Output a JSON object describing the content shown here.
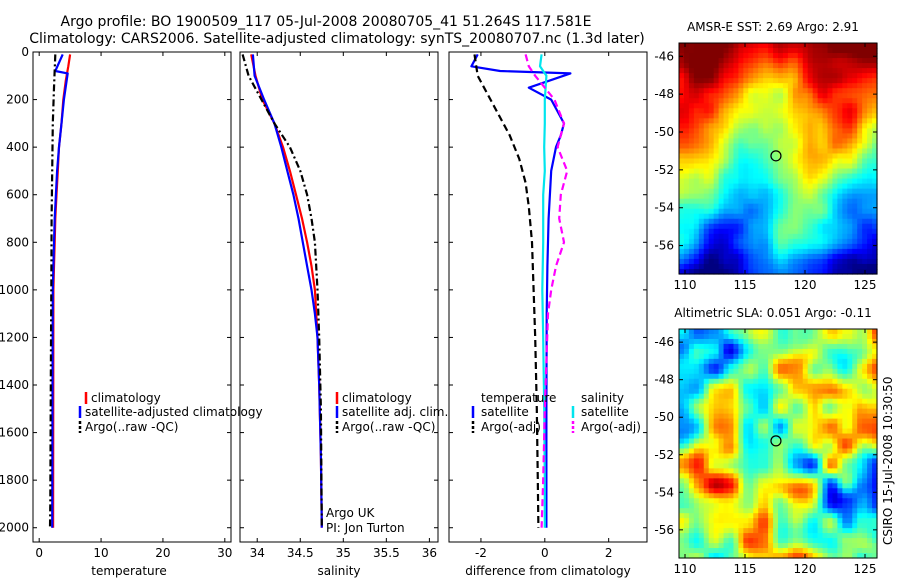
{
  "figure": {
    "title_line1": "Argo profile: BO 1900509_117 05-Jul-2008 20080705_41 51.264S 117.581E",
    "title_line2": "Climatology: CARS2006. Satellite-adjusted climatology: synTS_20080707.nc (1.3d later)",
    "side_label": "CSIRO 15-Jul-2008 10:30:50"
  },
  "chart_data": [
    {
      "type": "line",
      "name": "temperature",
      "xlabel": "temperature",
      "ylabel": "",
      "xlim": [
        -1,
        31
      ],
      "ylim": [
        2060,
        0
      ],
      "xticks": [
        "0",
        "10",
        "20",
        "30"
      ],
      "xtick_values": [
        0,
        10,
        20,
        30
      ],
      "yticks": [
        "0",
        "200",
        "400",
        "600",
        "800",
        "1000",
        "1200",
        "1400",
        "1600",
        "1800",
        "2000"
      ],
      "ytick_values": [
        0,
        200,
        400,
        600,
        800,
        1000,
        1200,
        1400,
        1600,
        1800,
        2000
      ],
      "legend": [
        "climatology",
        "satellite-adjusted climatology",
        "Argo(..raw -QC)"
      ],
      "series": [
        {
          "name": "climatology",
          "color": "#ff0000",
          "style": "solid",
          "x": [
            5.0,
            4.7,
            4.3,
            3.9,
            3.6,
            3.2,
            3.0,
            2.8,
            2.6,
            2.5,
            2.4,
            2.3,
            2.25
          ],
          "y": [
            10,
            60,
            120,
            200,
            300,
            400,
            500,
            600,
            700,
            800,
            900,
            1000,
            2000
          ]
        },
        {
          "name": "satellite-adjusted climatology",
          "color": "#0000ff",
          "style": "solid",
          "x": [
            3.8,
            2.6,
            4.6,
            4.0,
            3.6,
            3.2,
            2.9,
            2.7,
            2.5,
            2.4,
            2.3,
            2.2,
            2.15,
            2.1
          ],
          "y": [
            10,
            80,
            90,
            200,
            300,
            400,
            500,
            600,
            700,
            800,
            900,
            1000,
            1400,
            2000
          ]
        },
        {
          "name": "Argo(..raw -QC)",
          "color": "#000000",
          "style": "dashdot",
          "x": [
            2.6,
            2.4,
            2.2,
            2.1,
            2.0,
            1.95,
            1.9,
            1.85,
            1.8,
            1.75
          ],
          "y": [
            10,
            150,
            300,
            500,
            700,
            1000,
            1300,
            1600,
            1900,
            2000
          ]
        }
      ]
    },
    {
      "type": "line",
      "name": "salinity",
      "xlabel": "salinity",
      "ylabel": "",
      "xlim": [
        33.8,
        36.1
      ],
      "ylim": [
        2060,
        0
      ],
      "xticks": [
        "34",
        "34.5",
        "35",
        "35.5",
        "36"
      ],
      "xtick_values": [
        34,
        34.5,
        35,
        35.5,
        36
      ],
      "legend": [
        "climatology",
        "satellite adj. clim.",
        "Argo(..raw -QC)"
      ],
      "annotations": [
        "Argo UK",
        "PI: Jon Turton"
      ],
      "series": [
        {
          "name": "climatology",
          "color": "#ff0000",
          "style": "solid",
          "x": [
            33.93,
            33.98,
            34.06,
            34.2,
            34.3,
            34.38,
            34.45,
            34.52,
            34.58,
            34.63,
            34.67,
            34.7,
            34.72,
            34.74,
            34.75
          ],
          "y": [
            10,
            100,
            200,
            300,
            400,
            500,
            600,
            700,
            800,
            900,
            1000,
            1200,
            1400,
            1700,
            2000
          ]
        },
        {
          "name": "satellite adj. clim.",
          "color": "#0000ff",
          "style": "solid",
          "x": [
            33.95,
            33.97,
            34.08,
            34.2,
            34.28,
            34.35,
            34.42,
            34.48,
            34.53,
            34.58,
            34.63,
            34.67,
            34.7,
            34.72,
            34.74,
            34.75
          ],
          "y": [
            10,
            100,
            200,
            300,
            400,
            500,
            600,
            700,
            800,
            900,
            1000,
            1100,
            1200,
            1400,
            1700,
            2000
          ]
        },
        {
          "name": "Argo(..raw -QC)",
          "color": "#000000",
          "style": "dashdot",
          "x": [
            33.83,
            33.9,
            34.05,
            34.2,
            34.38,
            34.5,
            34.58,
            34.63,
            34.67,
            34.7,
            34.72,
            34.74,
            34.75
          ],
          "y": [
            10,
            100,
            200,
            300,
            400,
            500,
            600,
            700,
            800,
            1000,
            1200,
            1500,
            2000
          ]
        }
      ]
    },
    {
      "type": "line",
      "name": "difference",
      "xlabel": "difference from climatology",
      "ylabel": "",
      "xlim": [
        -3,
        3.2
      ],
      "ylim": [
        2060,
        0
      ],
      "xticks": [
        "-2",
        "0",
        "2"
      ],
      "xtick_values": [
        -2,
        0,
        2
      ],
      "legend_left_title": "temperature",
      "legend_left": [
        "satellite",
        "Argo(-adj)"
      ],
      "legend_right_title": "salinity",
      "legend_right": [
        "satellite",
        "Argo(-adj)"
      ],
      "series": [
        {
          "name": "temperature satellite",
          "color": "#0000ff",
          "style": "solid",
          "x": [
            -2.1,
            -2.3,
            -1.4,
            0.8,
            -0.5,
            0.2,
            0.4,
            0.6,
            0.5,
            0.35,
            0.2,
            0.12,
            0.08,
            0.06,
            0.05,
            0.05
          ],
          "y": [
            10,
            60,
            80,
            90,
            150,
            200,
            250,
            300,
            350,
            400,
            500,
            700,
            900,
            1100,
            1500,
            2000
          ]
        },
        {
          "name": "temperature Argo(-adj)",
          "color": "#000000",
          "style": "dashed",
          "x": [
            -2.2,
            -2.1,
            -1.9,
            -1.5,
            -1.1,
            -0.8,
            -0.6,
            -0.5,
            -0.4,
            -0.35,
            -0.3,
            -0.25,
            -0.22,
            -0.2
          ],
          "y": [
            10,
            100,
            150,
            250,
            350,
            450,
            550,
            650,
            800,
            1000,
            1200,
            1500,
            1800,
            2000
          ]
        },
        {
          "name": "salinity satellite",
          "color": "#00e5ee",
          "style": "solid",
          "x": [
            -0.1,
            -0.15,
            0.05,
            0.0,
            0.0,
            -0.02,
            0.0,
            -0.05,
            -0.05,
            -0.08,
            -0.05,
            -0.02,
            0.0,
            0.0
          ],
          "y": [
            10,
            60,
            100,
            200,
            300,
            400,
            500,
            600,
            800,
            1000,
            1200,
            1500,
            1800,
            2000
          ]
        },
        {
          "name": "salinity Argo(-adj)",
          "color": "#ff00ff",
          "style": "dashed",
          "x": [
            -0.6,
            -0.5,
            -0.3,
            0.3,
            0.6,
            0.4,
            0.7,
            0.5,
            0.45,
            0.6,
            0.35,
            0.2,
            0.1,
            0.05,
            0.0,
            -0.05,
            -0.1
          ],
          "y": [
            10,
            60,
            100,
            200,
            300,
            400,
            500,
            600,
            700,
            800,
            900,
            1000,
            1100,
            1300,
            1500,
            1800,
            2000
          ]
        }
      ]
    },
    {
      "type": "heatmap",
      "name": "sst_map",
      "title": "AMSR-E SST: 2.69 Argo: 2.91",
      "xlim": [
        109.5,
        126
      ],
      "ylim": [
        -57.5,
        -45.3
      ],
      "xticks": [
        "110",
        "115",
        "120",
        "125"
      ],
      "xtick_values": [
        110,
        115,
        120,
        125
      ],
      "yticks": [
        "-46",
        "-48",
        "-50",
        "-52",
        "-54",
        "-56"
      ],
      "ytick_values": [
        -46,
        -48,
        -50,
        -52,
        -54,
        -56
      ],
      "marker": {
        "lon": 117.58,
        "lat": -51.26
      }
    },
    {
      "type": "heatmap",
      "name": "sla_map",
      "title": "Altimetric SLA: 0.051 Argo: -0.11",
      "xlim": [
        109.5,
        126
      ],
      "ylim": [
        -57.5,
        -45.3
      ],
      "xticks": [
        "110",
        "115",
        "120",
        "125"
      ],
      "xtick_values": [
        110,
        115,
        120,
        125
      ],
      "yticks": [
        "-46",
        "-48",
        "-50",
        "-52",
        "-54",
        "-56"
      ],
      "ytick_values": [
        -46,
        -48,
        -50,
        -52,
        -54,
        -56
      ],
      "marker": {
        "lon": 117.58,
        "lat": -51.26
      }
    }
  ]
}
